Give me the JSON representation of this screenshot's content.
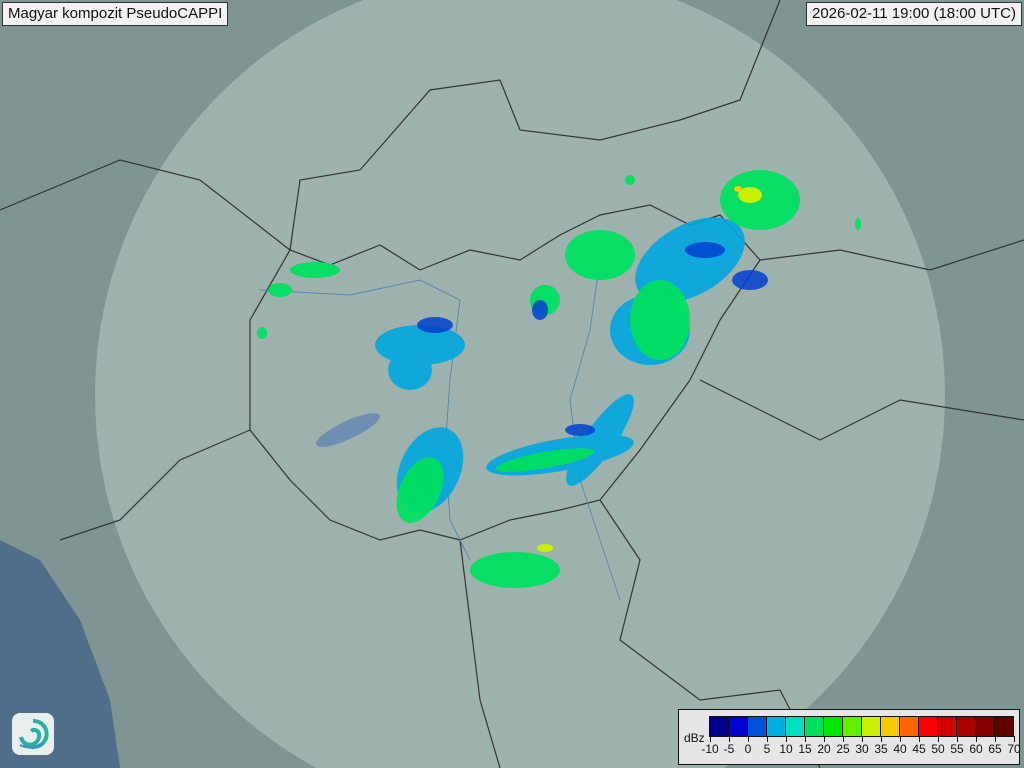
{
  "header": {
    "title": "Magyar kompozit  PseudoCAPPI",
    "timestamp": "2026-02-11 19:00 (18:00 UTC)"
  },
  "legend": {
    "unit": "dBz",
    "ticks": [
      "-10",
      "-5",
      "0",
      "5",
      "10",
      "15",
      "20",
      "25",
      "30",
      "35",
      "40",
      "45",
      "50",
      "55",
      "60",
      "65",
      "70"
    ],
    "colors": [
      "#00008c",
      "#0000d0",
      "#0050d8",
      "#00b0e0",
      "#00e0c0",
      "#00e060",
      "#00e800",
      "#60f000",
      "#c8f000",
      "#f8c800",
      "#ff6400",
      "#ff0000",
      "#d40000",
      "#ac0000",
      "#860000",
      "#600000"
    ]
  },
  "logo": {
    "icon": "swirl-logo-icon"
  }
}
